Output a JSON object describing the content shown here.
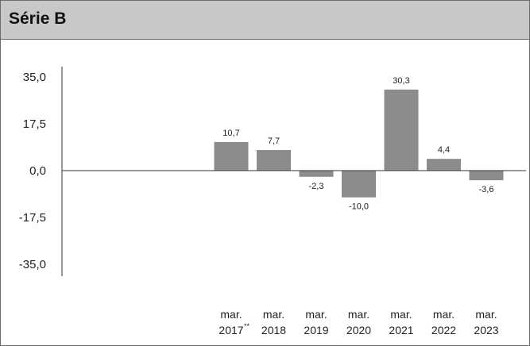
{
  "title": "Série B",
  "chart_data": {
    "type": "bar",
    "title": "Série B",
    "categories": [
      {
        "line1": "mar.",
        "line2": "2017",
        "sup": "**"
      },
      {
        "line1": "mar.",
        "line2": "2018",
        "sup": ""
      },
      {
        "line1": "mar.",
        "line2": "2019",
        "sup": ""
      },
      {
        "line1": "mar.",
        "line2": "2020",
        "sup": ""
      },
      {
        "line1": "mar.",
        "line2": "2021",
        "sup": ""
      },
      {
        "line1": "mar.",
        "line2": "2022",
        "sup": ""
      },
      {
        "line1": "mar.",
        "line2": "2023",
        "sup": ""
      }
    ],
    "values": [
      10.7,
      7.7,
      -2.3,
      -10.0,
      30.3,
      4.4,
      -3.6
    ],
    "value_labels": [
      "10,7",
      "7,7",
      "-2,3",
      "-10,0",
      "30,3",
      "4,4",
      "-3,6"
    ],
    "yticks": [
      35.0,
      17.5,
      0.0,
      -17.5,
      -35.0
    ],
    "ytick_labels": [
      "35,0",
      "17,5",
      "0,0",
      "-17,5",
      "-35,0"
    ],
    "ylim": [
      -35.0,
      35.0
    ],
    "grid": false,
    "bar_color": "#8c8c8c",
    "xlabel": "",
    "ylabel": ""
  }
}
